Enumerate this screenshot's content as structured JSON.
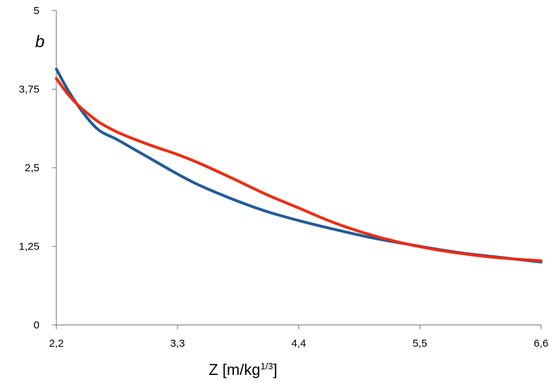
{
  "chart_data": {
    "type": "line",
    "title": "",
    "xlabel": "Z [m/kg",
    "xlabel_sup": "1/3",
    "xlabel_close": "]",
    "ylabel": "b",
    "xlim": [
      2.2,
      6.6
    ],
    "ylim": [
      0,
      5
    ],
    "x_ticks": [
      2.2,
      3.3,
      4.4,
      5.5,
      6.6
    ],
    "x_tick_labels": [
      "2,2",
      "3,3",
      "4,4",
      "5,5",
      "6,6"
    ],
    "y_ticks": [
      0,
      1.25,
      2.5,
      3.75,
      5
    ],
    "y_tick_labels": [
      "0",
      "1,25",
      "2,5",
      "3,75",
      "5"
    ],
    "grid": false,
    "legend": "none",
    "series": [
      {
        "color": "#1f5b9a",
        "x": [
          2.2,
          2.3,
          2.4,
          2.5,
          2.6,
          2.75,
          2.9,
          3.1,
          3.3,
          3.5,
          3.8,
          4.1,
          4.4,
          4.7,
          5.0,
          5.3,
          5.6,
          5.9,
          6.2,
          6.6
        ],
        "y": [
          4.07,
          3.75,
          3.48,
          3.25,
          3.08,
          2.95,
          2.8,
          2.6,
          2.4,
          2.22,
          2.0,
          1.81,
          1.66,
          1.53,
          1.41,
          1.31,
          1.22,
          1.14,
          1.08,
          1.0
        ]
      },
      {
        "color": "#f02a10",
        "x": [
          2.2,
          2.3,
          2.4,
          2.5,
          2.6,
          2.75,
          2.9,
          3.1,
          3.3,
          3.5,
          3.8,
          4.1,
          4.4,
          4.7,
          5.0,
          5.3,
          5.6,
          5.9,
          6.2,
          6.6
        ],
        "y": [
          3.92,
          3.68,
          3.49,
          3.34,
          3.21,
          3.07,
          2.96,
          2.83,
          2.71,
          2.57,
          2.33,
          2.08,
          1.86,
          1.64,
          1.46,
          1.32,
          1.21,
          1.13,
          1.07,
          1.02
        ]
      }
    ]
  }
}
